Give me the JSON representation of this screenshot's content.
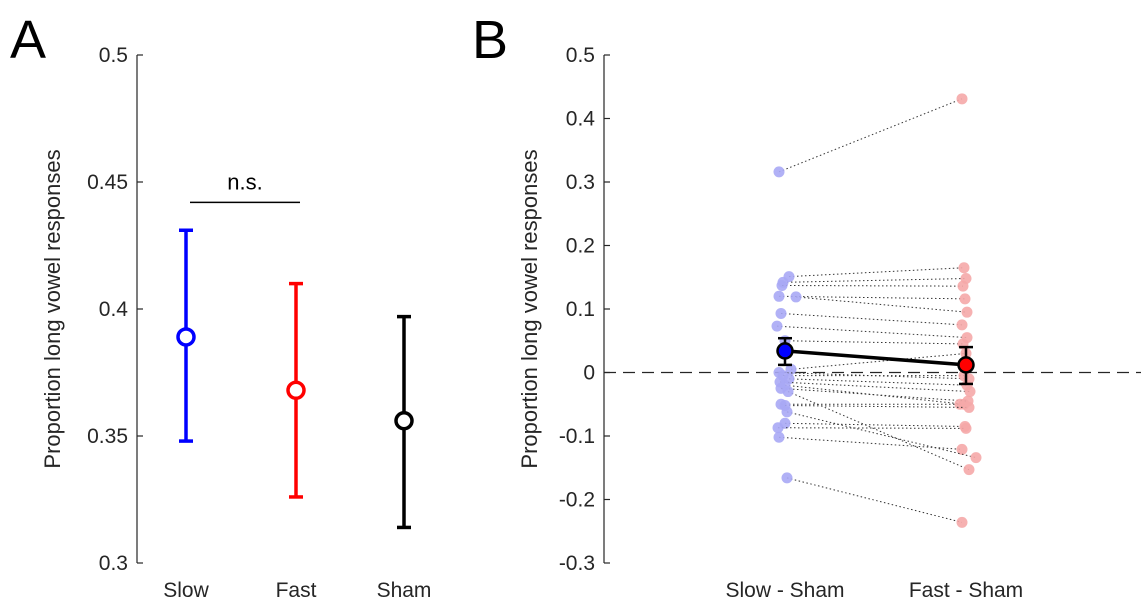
{
  "panels": {
    "a_letter": "A",
    "b_letter": "B"
  },
  "chart_data": [
    {
      "type": "scatter",
      "panel": "A",
      "ylabel": "Proportion long vowel responses",
      "ylim": [
        0.3,
        0.5
      ],
      "yticks": [
        0.3,
        0.35,
        0.4,
        0.45,
        0.5
      ],
      "ytick_labels": [
        "0.3",
        "0.35",
        "0.4",
        "0.45",
        "0.5"
      ],
      "categories": [
        "Slow",
        "Fast",
        "Sham"
      ],
      "means": [
        0.389,
        0.368,
        0.356
      ],
      "error_low": [
        0.348,
        0.326,
        0.314
      ],
      "error_high": [
        0.431,
        0.41,
        0.397
      ],
      "colors": [
        "#0000ff",
        "#ff0000",
        "#000000"
      ],
      "annotation": {
        "text": "n.s.",
        "from": "Slow",
        "to": "Fast",
        "y": 0.442
      }
    },
    {
      "type": "scatter",
      "panel": "B",
      "ylabel": "Proportion long vowel responses",
      "ylim": [
        -0.3,
        0.5
      ],
      "yticks": [
        -0.3,
        -0.2,
        -0.1,
        0,
        0.1,
        0.2,
        0.3,
        0.4,
        0.5
      ],
      "ytick_labels": [
        "-0.3",
        "-0.2",
        "-0.1",
        "0",
        "0.1",
        "0.2",
        "0.3",
        "0.4",
        "0.5"
      ],
      "categories": [
        "Slow - Sham",
        "Fast - Sham"
      ],
      "reference_line": 0,
      "means": [
        0.034,
        0.012
      ],
      "error_low": [
        0.012,
        -0.018
      ],
      "error_high": [
        0.054,
        0.04
      ],
      "colors": [
        "#0000ff",
        "#ff0000"
      ],
      "individual_colors": [
        "#a8a8f5",
        "#f5a8a8"
      ],
      "pairs": [
        {
          "slow": 0.316,
          "fast": 0.431,
          "js": -0.03,
          "jf": -0.02
        },
        {
          "slow": 0.151,
          "fast": 0.165,
          "js": 0.02,
          "jf": -0.01
        },
        {
          "slow": 0.142,
          "fast": 0.148,
          "js": -0.01,
          "jf": 0.0
        },
        {
          "slow": 0.137,
          "fast": 0.136,
          "js": -0.015,
          "jf": -0.015
        },
        {
          "slow": 0.12,
          "fast": 0.116,
          "js": -0.03,
          "jf": -0.005
        },
        {
          "slow": 0.119,
          "fast": 0.095,
          "js": 0.055,
          "jf": 0.005
        },
        {
          "slow": 0.093,
          "fast": 0.075,
          "js": -0.02,
          "jf": -0.02
        },
        {
          "slow": 0.073,
          "fast": 0.055,
          "js": -0.04,
          "jf": 0.005
        },
        {
          "slow": 0.05,
          "fast": 0.045,
          "js": 0.0,
          "jf": -0.015
        },
        {
          "slow": 0.005,
          "fast": 0.03,
          "js": 0.03,
          "jf": 0.0
        },
        {
          "slow": 0.0,
          "fast": -0.01,
          "js": -0.03,
          "jf": 0.015
        },
        {
          "slow": -0.005,
          "fast": -0.005,
          "js": -0.01,
          "jf": -0.01
        },
        {
          "slow": -0.01,
          "fast": -0.02,
          "js": 0.02,
          "jf": 0.005
        },
        {
          "slow": -0.015,
          "fast": -0.03,
          "js": -0.025,
          "jf": 0.02
        },
        {
          "slow": -0.02,
          "fast": -0.05,
          "js": 0.0,
          "jf": -0.01
        },
        {
          "slow": -0.025,
          "fast": -0.045,
          "js": -0.02,
          "jf": 0.01
        },
        {
          "slow": -0.05,
          "fast": -0.05,
          "js": -0.02,
          "jf": -0.03
        },
        {
          "slow": -0.052,
          "fast": -0.055,
          "js": 0.0,
          "jf": 0.015
        },
        {
          "slow": -0.08,
          "fast": -0.085,
          "js": 0.0,
          "jf": -0.005
        },
        {
          "slow": -0.087,
          "fast": -0.088,
          "js": -0.035,
          "jf": 0.0
        },
        {
          "slow": -0.102,
          "fast": -0.121,
          "js": -0.03,
          "jf": -0.02
        },
        {
          "slow": -0.062,
          "fast": -0.134,
          "js": 0.01,
          "jf": 0.05
        },
        {
          "slow": -0.03,
          "fast": -0.153,
          "js": 0.015,
          "jf": 0.015
        },
        {
          "slow": -0.166,
          "fast": -0.236,
          "js": 0.01,
          "jf": -0.02
        }
      ]
    }
  ]
}
